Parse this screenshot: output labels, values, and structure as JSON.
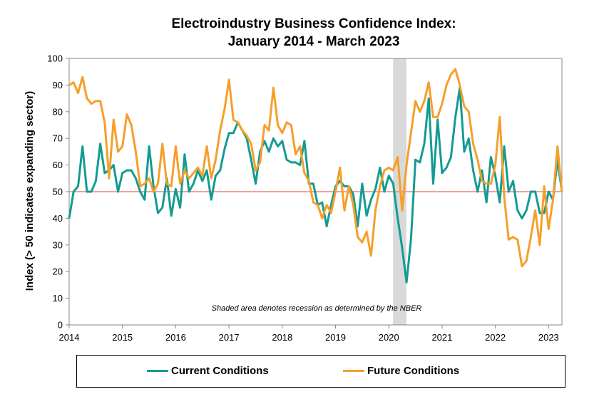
{
  "colors": {
    "current": "#139B92",
    "future": "#F59F2A",
    "reference": "#F28078",
    "recession": "#D9D9D9"
  },
  "chart_data": {
    "type": "line",
    "title": "Electroindustry Business Confidence Index:",
    "subtitle": "January 2014 - March 2023",
    "xlabel": "",
    "ylabel": "Index (> 50 indicates expanding sector)",
    "ylim": [
      0,
      100
    ],
    "yticks": [
      0,
      10,
      20,
      30,
      40,
      50,
      60,
      70,
      80,
      90,
      100
    ],
    "x_start": "2014-01",
    "xlim": [
      2014,
      2023.25
    ],
    "xticks": [
      2014,
      2015,
      2016,
      2017,
      2018,
      2019,
      2020,
      2021,
      2022,
      2023
    ],
    "xtick_labels": [
      "2014",
      "2015",
      "2016",
      "2017",
      "2018",
      "2019",
      "2020",
      "2021",
      "2022",
      "2023"
    ],
    "reference_line": 50,
    "recession": {
      "start": 2020.08,
      "end": 2020.33
    },
    "annotation": "Shaded area denotes recession as determined by the NBER",
    "series": [
      {
        "name": "Current Conditions",
        "color_key": "current",
        "values": [
          40,
          50,
          52,
          67,
          50,
          50,
          54,
          68,
          57,
          58,
          60,
          50,
          57,
          58,
          58,
          55,
          50,
          47,
          67,
          52,
          42,
          44,
          55,
          41,
          51,
          44,
          64,
          50,
          53,
          58,
          54,
          58,
          47,
          56,
          58,
          66,
          72,
          72,
          76,
          73,
          70,
          62,
          53,
          65,
          69,
          65,
          70,
          67,
          69,
          62,
          61,
          61,
          60,
          69,
          53,
          53,
          45,
          46,
          37,
          45,
          52,
          54,
          52,
          52,
          49,
          37,
          53,
          41,
          47,
          51,
          59,
          50,
          56,
          53,
          40,
          29,
          16,
          32,
          62,
          61,
          68,
          85,
          53,
          77,
          57,
          59,
          63,
          78,
          89,
          65,
          70,
          58,
          50,
          58,
          46,
          63,
          56,
          46,
          67,
          50,
          54,
          43,
          40,
          43,
          50,
          50,
          42,
          42,
          50,
          47,
          62,
          50
        ]
      },
      {
        "name": "Future Conditions",
        "color_key": "future",
        "values": [
          90,
          91,
          87,
          93,
          85,
          83,
          84,
          84,
          76,
          55,
          77,
          65,
          67,
          79,
          75,
          65,
          52,
          53,
          55,
          50,
          53,
          68,
          53,
          52,
          67,
          53,
          58,
          55,
          57,
          59,
          56,
          67,
          55,
          62,
          73,
          81,
          92,
          77,
          76,
          73,
          71,
          68,
          58,
          61,
          75,
          73,
          89,
          75,
          72,
          76,
          75,
          64,
          67,
          57,
          54,
          46,
          45,
          40,
          45,
          42,
          50,
          59,
          43,
          52,
          45,
          33,
          31,
          35,
          26,
          43,
          52,
          58,
          59,
          58,
          63,
          43,
          60,
          72,
          84,
          80,
          84,
          91,
          78,
          78,
          83,
          90,
          94,
          96,
          90,
          82,
          80,
          68,
          62,
          54,
          53,
          53,
          60,
          78,
          48,
          32,
          33,
          32,
          22,
          24,
          33,
          43,
          30,
          52,
          36,
          47,
          67,
          50
        ]
      }
    ]
  }
}
